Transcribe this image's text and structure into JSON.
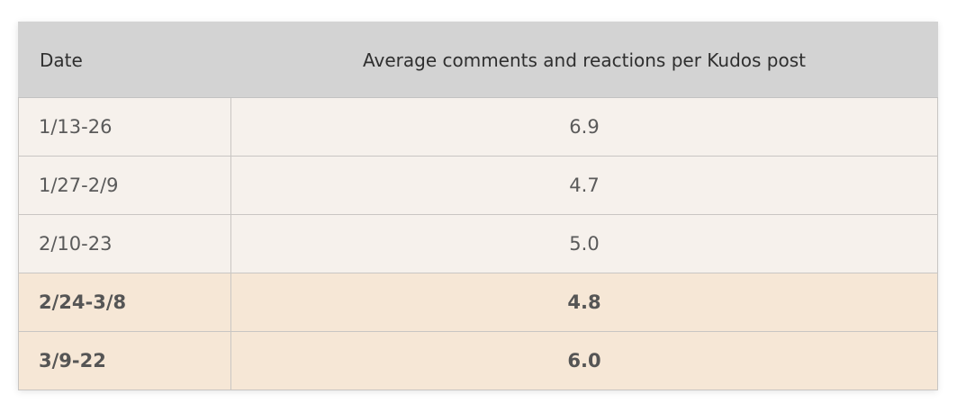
{
  "table": {
    "headers": [
      "Date",
      "Average comments and reactions per Kudos post"
    ],
    "rows": [
      {
        "date": "1/13-26",
        "value": "6.9",
        "highlight": false
      },
      {
        "date": "1/27-2/9",
        "value": "4.7",
        "highlight": false
      },
      {
        "date": "2/10-23",
        "value": "5.0",
        "highlight": false
      },
      {
        "date": "2/24-3/8",
        "value": "4.8",
        "highlight": true
      },
      {
        "date": "3/9-22",
        "value": "6.0",
        "highlight": true
      }
    ]
  },
  "colors": {
    "header_bg": "#d3d3d3",
    "row_bg": "#f6f1ec",
    "highlight_bg": "#f6e7d6"
  }
}
